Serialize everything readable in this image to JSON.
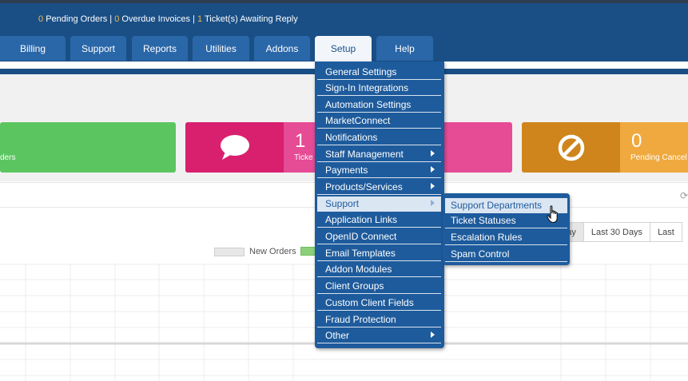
{
  "header": {
    "pending_orders_count": "0",
    "pending_orders_label": "Pending Orders",
    "sep1": "|",
    "overdue_count": "0",
    "overdue_label": "Overdue Invoices",
    "sep2": "|",
    "tickets_count": "1",
    "tickets_label": "Ticket(s) Awaiting Reply"
  },
  "nav": {
    "tabs": [
      {
        "label": "Billing"
      },
      {
        "label": "Support"
      },
      {
        "label": "Reports"
      },
      {
        "label": "Utilities"
      },
      {
        "label": "Addons"
      },
      {
        "label": "Setup"
      },
      {
        "label": "Help"
      }
    ],
    "active_tab": "Setup"
  },
  "stats": [
    {
      "count": "",
      "label": "ders",
      "color": "#5bc660"
    },
    {
      "count": "1",
      "label": "Ticke",
      "icon": "speech-bubble-icon",
      "color": "#e64b95",
      "icon_color": "#d8206e"
    },
    {
      "count": "",
      "label": "",
      "color": "#e64b95"
    },
    {
      "count": "0",
      "label": "Pending Cancel",
      "icon": "ban-icon",
      "color": "#f0a93e",
      "icon_color": "#cf851c"
    }
  ],
  "setup_menu": {
    "items": [
      {
        "label": "General Settings"
      },
      {
        "label": "Sign-In Integrations"
      },
      {
        "label": "Automation Settings"
      },
      {
        "label": "MarketConnect"
      },
      {
        "label": "Notifications"
      },
      {
        "label": "Staff Management",
        "submenu": true
      },
      {
        "label": "Payments",
        "submenu": true
      },
      {
        "label": "Products/Services",
        "submenu": true
      },
      {
        "label": "Support",
        "submenu": true,
        "highlighted": true
      },
      {
        "label": "Application Links"
      },
      {
        "label": "OpenID Connect"
      },
      {
        "label": "Email Templates"
      },
      {
        "label": "Addon Modules"
      },
      {
        "label": "Client Groups"
      },
      {
        "label": "Custom Client Fields"
      },
      {
        "label": "Fraud Protection"
      },
      {
        "label": "Other",
        "submenu": true
      }
    ]
  },
  "support_submenu": {
    "items": [
      {
        "label": "Support Departments",
        "hovered": true
      },
      {
        "label": "Ticket Statuses"
      },
      {
        "label": "Escalation Rules"
      },
      {
        "label": "Spam Control"
      }
    ]
  },
  "chart_panel": {
    "legend": [
      {
        "name": "New Orders",
        "color": "#e8e8e8"
      },
      {
        "name": "",
        "color": "#8cd17a"
      }
    ],
    "range_buttons": [
      {
        "label": "oday",
        "active": true
      },
      {
        "label": "Last 30 Days"
      },
      {
        "label": "Last"
      }
    ]
  },
  "colors": {
    "header_blue": "#1a4f86",
    "menu_blue": "#1e5b9c",
    "highlight": "#dbe6f3",
    "alert_number": "#f0b942"
  }
}
